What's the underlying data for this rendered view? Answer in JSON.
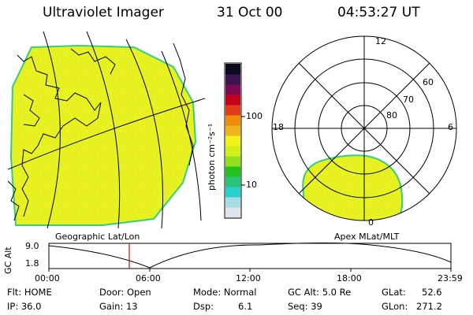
{
  "header": {
    "instrument": "Ultraviolet Imager",
    "date": "31 Oct 00",
    "time": "04:53:27 UT"
  },
  "colorbar": {
    "unit_label": "photon cm⁻²s⁻¹",
    "tick_100": "100",
    "tick_10": "10",
    "colors": [
      "#dfe6ea",
      "#a6dce6",
      "#2ad0d0",
      "#29c27b",
      "#25c21d",
      "#92e01b",
      "#d4f01c",
      "#f0f219",
      "#f0b21d",
      "#f08b0c",
      "#e13b1a",
      "#c4001a",
      "#7e0a52",
      "#3c1550",
      "#0a0a1c"
    ]
  },
  "geo_map": {
    "label": "Geographic Lat/Lon",
    "fill_color": "#e8f221",
    "edge_color": "#32d07a"
  },
  "polar_map": {
    "label": "Apex MLat/MLT",
    "mlt_labels": {
      "top": "12",
      "left": "18",
      "right": "6",
      "bottom": "0"
    },
    "lat_labels": [
      "60",
      "70",
      "80"
    ]
  },
  "alt_plot": {
    "axis_label": "GC Alt",
    "y_ticks": [
      "9.0",
      "1.8"
    ],
    "x_ticks": [
      "00:00",
      "06:00",
      "12:00",
      "18:00",
      "23:59"
    ],
    "current_time_color": "#e00000"
  },
  "footer": {
    "flt": "Flt: HOME",
    "door": "Door: Open",
    "mode": "Mode: Normal",
    "gc_alt": "GC Alt: 5.0 Re",
    "glat_label": "GLat:",
    "glat_value": "52.6",
    "ip": "IP: 36.0",
    "gain": "Gain: 13",
    "dsp_label": "Dsp:",
    "dsp_value": "6.1",
    "seq": "Seq: 39",
    "glon_label": "GLon:",
    "glon_value": "271.2"
  }
}
